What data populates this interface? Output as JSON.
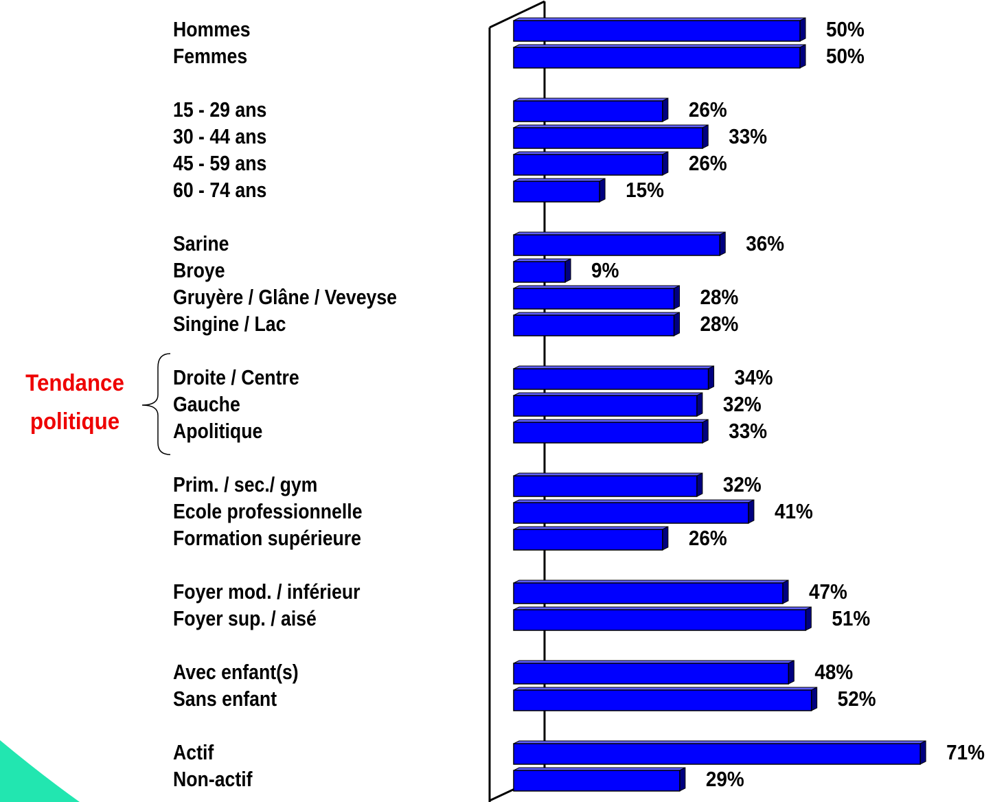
{
  "chart_data": {
    "type": "bar",
    "categories": [
      "Hommes",
      "Femmes",
      "15 - 29 ans",
      "30 - 44 ans",
      "45 - 59 ans",
      "60 - 74 ans",
      "Sarine",
      "Broye",
      "Gruyère / Glâne / Veveyse",
      "Singine / Lac",
      "Droite / Centre",
      "Gauche",
      "Apolitique",
      "Prim. / sec./ gym",
      "Ecole professionnelle",
      "Formation supérieure",
      "Foyer mod. / inférieur",
      "Foyer sup. / aisé",
      "Avec enfant(s)",
      "Sans enfant",
      "Actif",
      "Non-actif"
    ],
    "values": [
      50,
      50,
      26,
      33,
      26,
      15,
      36,
      9,
      28,
      28,
      34,
      32,
      33,
      32,
      41,
      26,
      47,
      51,
      48,
      52,
      71,
      29
    ],
    "value_labels": [
      "50%",
      "50%",
      "26%",
      "33%",
      "26%",
      "15%",
      "36%",
      "9%",
      "28%",
      "28%",
      "34%",
      "32%",
      "33%",
      "32%",
      "41%",
      "26%",
      "47%",
      "51%",
      "48%",
      "52%",
      "71%",
      "29%"
    ],
    "color": "#0000ff",
    "annotation": "Tendance politique"
  }
}
